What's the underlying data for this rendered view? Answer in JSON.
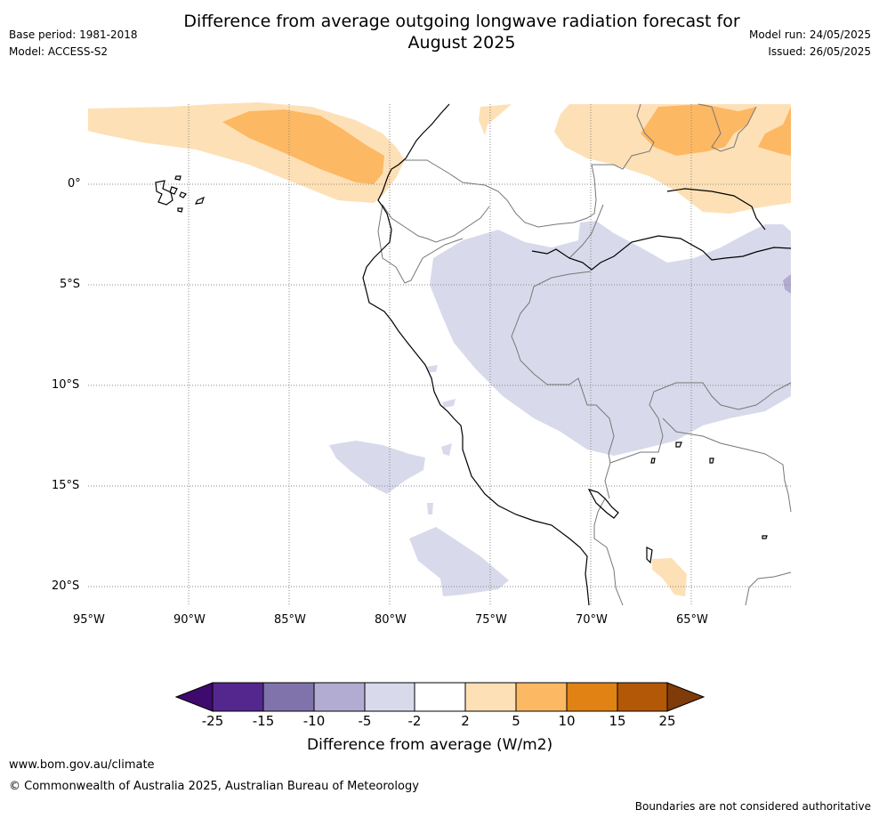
{
  "title_line1": "Difference from average outgoing longwave radiation forecast for",
  "title_line2": "August 2025",
  "base_period": "Base period: 1981-2018",
  "model": "Model: ACCESS-S2",
  "model_run": "Model run: 24/05/2025",
  "issued": "Issued: 26/05/2025",
  "map": {
    "lon_labels": [
      "95°W",
      "90°W",
      "85°W",
      "80°W",
      "75°W",
      "70°W",
      "65°W"
    ],
    "lat_labels": [
      "0°",
      "5°S",
      "10°S",
      "15°S",
      "20°S"
    ],
    "lon_range": [
      -95,
      -60
    ],
    "lat_range": [
      -21,
      4
    ]
  },
  "colorbar": {
    "ticks": [
      "-25",
      "-15",
      "-10",
      "-5",
      "-2",
      "2",
      "5",
      "10",
      "15",
      "25"
    ],
    "colors": [
      "#3f0a6e",
      "#54278f",
      "#8073ac",
      "#b2abd2",
      "#d8daeb",
      "#ffffff",
      "#fee0b6",
      "#fdb863",
      "#e08214",
      "#b35806",
      "#7f3b08"
    ],
    "title": "Difference from average (W/m2)"
  },
  "footer": {
    "url": "www.bom.gov.au/climate",
    "copyright": "© Commonwealth of Australia 2025, Australian Bureau of Meteorology",
    "disclaimer": "Boundaries are not considered authoritative"
  }
}
